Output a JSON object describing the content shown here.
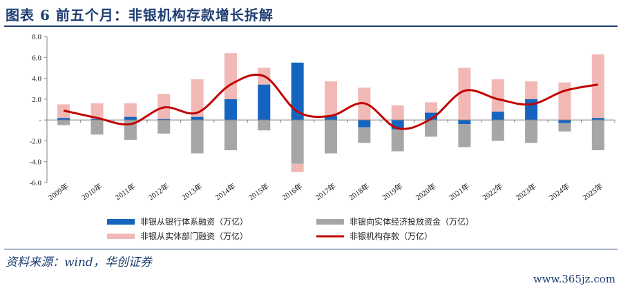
{
  "header": {
    "title": "图表 6   前五个月：非银机构存款增长拆解"
  },
  "footer": {
    "source": "资料来源：wind，华创证券",
    "watermark": "www.365jz.com"
  },
  "chart_data": {
    "type": "bar",
    "stacked": true,
    "categories": [
      "2009年",
      "2010年",
      "2011年",
      "2012年",
      "2013年",
      "2014年",
      "2015年",
      "2016年",
      "2017年",
      "2018年",
      "2019年",
      "2020年",
      "2021年",
      "2022年",
      "2023年",
      "2024年",
      "2025年"
    ],
    "ylim": [
      -6,
      8
    ],
    "yticks": [
      -6,
      -4,
      -2,
      0,
      2,
      4,
      6,
      8
    ],
    "ytick_labels": [
      "-6.0",
      "-4.0",
      "-2.0",
      "-",
      "2.0",
      "4.0",
      "6.0",
      "8.0"
    ],
    "legend_position": "bottom",
    "series": [
      {
        "name": "非银从银行体系融资（万亿）",
        "type": "bar",
        "color": "#1565c0",
        "values": [
          0.2,
          0.1,
          0.3,
          0.1,
          0.3,
          2.0,
          3.4,
          5.5,
          0.4,
          -0.7,
          -0.9,
          0.7,
          -0.4,
          0.8,
          2.0,
          -0.3,
          0.2
        ]
      },
      {
        "name": "非银向实体经济投放资金（万亿）",
        "type": "bar",
        "color": "#a6a6a6",
        "values": [
          -0.5,
          -1.4,
          -1.9,
          -1.3,
          -3.2,
          -2.9,
          -1.0,
          -4.2,
          -3.2,
          -1.5,
          -2.1,
          -1.6,
          -2.2,
          -2.0,
          -2.2,
          -0.8,
          -2.9
        ]
      },
      {
        "name": "非银从实体部门融资（万亿）",
        "type": "bar",
        "color": "#f2b8b6",
        "values": [
          1.3,
          1.5,
          1.3,
          2.4,
          3.6,
          4.4,
          1.6,
          -0.8,
          3.3,
          3.1,
          1.4,
          1.0,
          5.0,
          3.1,
          1.7,
          3.6,
          6.1
        ]
      },
      {
        "name": "非银机构存款（万亿）",
        "type": "line",
        "color": "#c00000",
        "values": [
          0.9,
          0.2,
          -0.4,
          1.2,
          0.7,
          3.4,
          4.2,
          0.8,
          0.4,
          1.6,
          -0.8,
          0.1,
          2.8,
          2.0,
          1.5,
          2.8,
          3.4
        ]
      }
    ]
  }
}
